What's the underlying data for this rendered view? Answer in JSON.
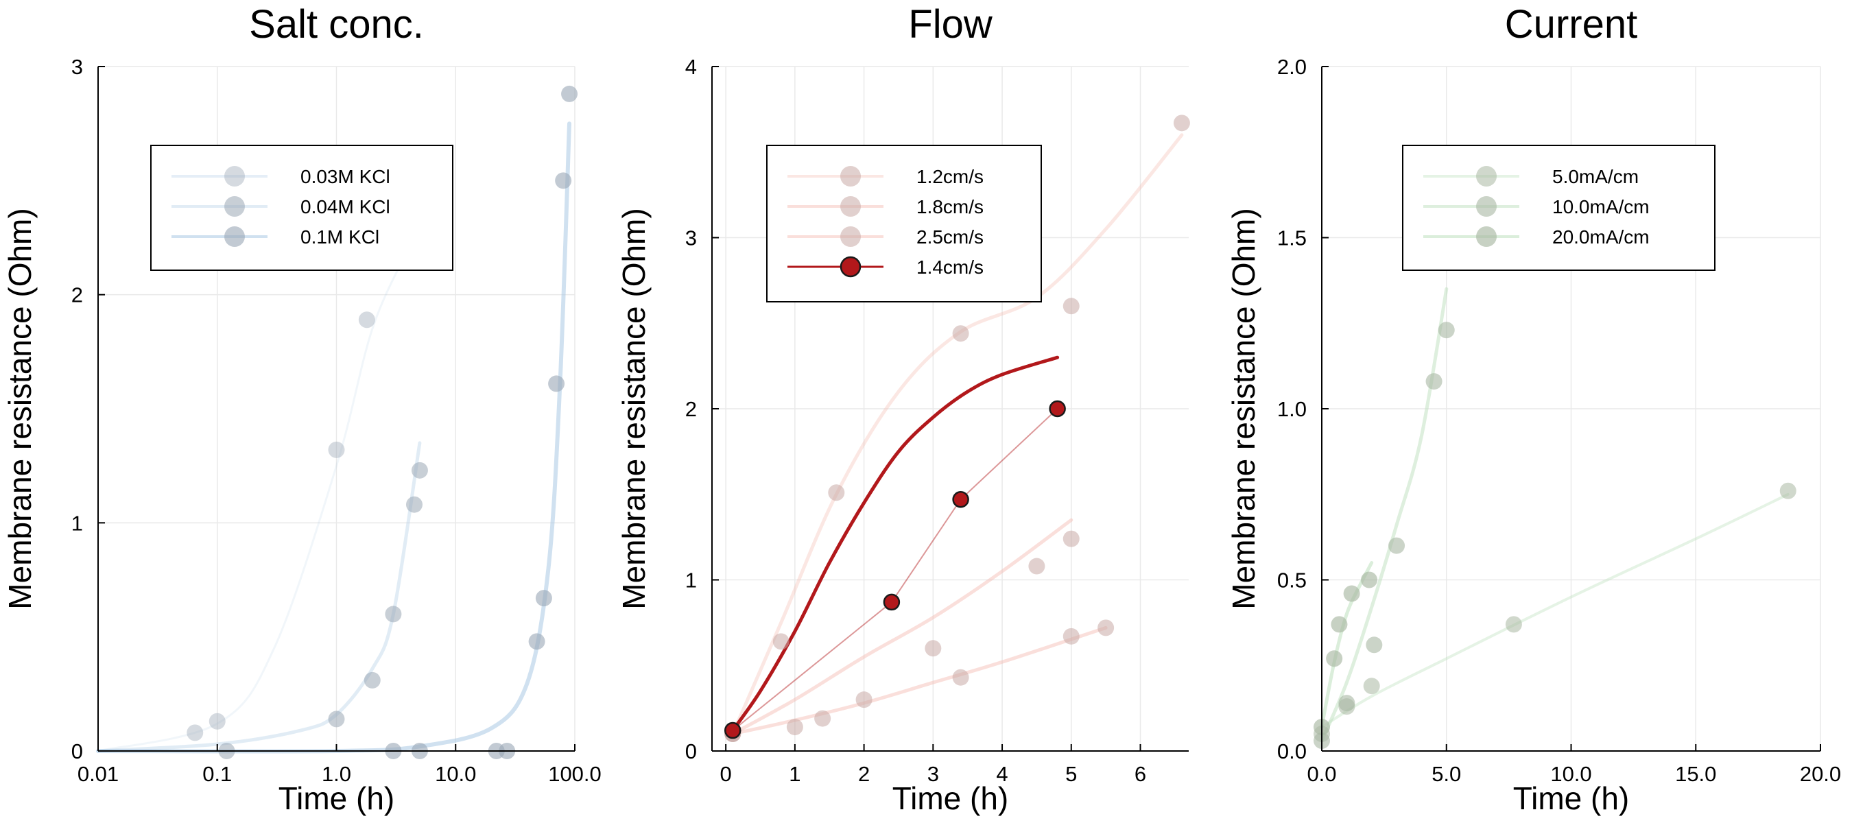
{
  "chart_data": [
    {
      "type": "scatter",
      "title": "Salt conc.",
      "xlabel": "Time (h)",
      "ylabel": "Membrane resistance (Ohm)",
      "xscale": "log",
      "xlim": [
        0.01,
        100
      ],
      "ylim": [
        0,
        3
      ],
      "xticks": [
        0.01,
        0.1,
        1,
        10,
        100
      ],
      "xtick_labels": [
        "0.01",
        "0.1",
        "1.0",
        "10.0",
        "100.0"
      ],
      "yticks": [
        0,
        1,
        2,
        3
      ],
      "ytick_labels": [
        "0",
        "1",
        "2",
        "3"
      ],
      "grid": true,
      "legend_position": "top-left",
      "colors": {
        "marker": "#9aa7b5",
        "line": "#a9c8e3"
      },
      "series": [
        {
          "name": "0.03M KCl",
          "points": [
            [
              0.065,
              0.08
            ],
            [
              0.1,
              0.13
            ],
            [
              1.0,
              1.32
            ],
            [
              1.8,
              1.89
            ]
          ],
          "fit": [
            [
              0.01,
              0.0
            ],
            [
              0.1,
              0.12
            ],
            [
              0.3,
              0.45
            ],
            [
              1.0,
              1.25
            ],
            [
              2.0,
              1.85
            ],
            [
              4.0,
              2.2
            ]
          ]
        },
        {
          "name": "0.04M KCl",
          "points": [
            [
              0.12,
              0.0
            ],
            [
              1.0,
              0.14
            ],
            [
              2.0,
              0.31
            ],
            [
              3.0,
              0.6
            ],
            [
              4.5,
              1.08
            ],
            [
              5.0,
              1.23
            ]
          ],
          "fit": [
            [
              0.01,
              0.0
            ],
            [
              0.1,
              0.03
            ],
            [
              0.5,
              0.09
            ],
            [
              1.0,
              0.16
            ],
            [
              2.0,
              0.36
            ],
            [
              3.0,
              0.6
            ],
            [
              5.0,
              1.35
            ]
          ]
        },
        {
          "name": "0.1M KCl",
          "points": [
            [
              3.0,
              0.0
            ],
            [
              5.0,
              0.0
            ],
            [
              22,
              0.0
            ],
            [
              27,
              0.0
            ],
            [
              48,
              0.48
            ],
            [
              55,
              0.67
            ],
            [
              70,
              1.61
            ],
            [
              80,
              2.5
            ],
            [
              90,
              2.88
            ]
          ],
          "fit": [
            [
              0.01,
              0.0
            ],
            [
              1.0,
              0.0
            ],
            [
              5.0,
              0.02
            ],
            [
              20,
              0.1
            ],
            [
              40,
              0.3
            ],
            [
              60,
              0.8
            ],
            [
              75,
              1.6
            ],
            [
              90,
              2.75
            ]
          ]
        }
      ]
    },
    {
      "type": "scatter",
      "title": "Flow",
      "xlabel": "Time (h)",
      "ylabel": "Membrane resistance (Ohm)",
      "xlim": [
        -0.2,
        6.7
      ],
      "ylim": [
        0,
        4
      ],
      "xticks": [
        0,
        1,
        2,
        3,
        4,
        5,
        6
      ],
      "xtick_labels": [
        "0",
        "1",
        "2",
        "3",
        "4",
        "5",
        "6"
      ],
      "yticks": [
        0,
        1,
        2,
        3,
        4
      ],
      "ytick_labels": [
        "0",
        "1",
        "2",
        "3",
        "4"
      ],
      "grid": true,
      "legend_position": "top-left",
      "colors": {
        "faint": "#f3b9b0",
        "highlight": "#b2181b"
      },
      "series": [
        {
          "name": "1.2cm/s",
          "points": [
            [
              0.1,
              0.1
            ],
            [
              0.8,
              0.64
            ],
            [
              1.6,
              1.51
            ],
            [
              3.4,
              2.44
            ],
            [
              5.0,
              2.6
            ],
            [
              6.6,
              3.67
            ]
          ],
          "fit": [
            [
              0.1,
              0.1
            ],
            [
              0.8,
              0.75
            ],
            [
              1.6,
              1.5
            ],
            [
              2.5,
              2.1
            ],
            [
              3.4,
              2.45
            ],
            [
              4.5,
              2.65
            ],
            [
              5.5,
              3.05
            ],
            [
              6.6,
              3.6
            ]
          ]
        },
        {
          "name": "1.8cm/s",
          "points": [
            [
              0.1,
              0.1
            ],
            [
              1.4,
              0.19
            ],
            [
              2.0,
              0.3
            ],
            [
              3.4,
              0.43
            ],
            [
              5.0,
              0.67
            ],
            [
              5.5,
              0.72
            ]
          ],
          "fit": [
            [
              0.1,
              0.1
            ],
            [
              1.0,
              0.18
            ],
            [
              2.0,
              0.28
            ],
            [
              3.0,
              0.4
            ],
            [
              4.0,
              0.52
            ],
            [
              5.5,
              0.72
            ]
          ]
        },
        {
          "name": "2.5cm/s",
          "points": [
            [
              0.1,
              0.1
            ],
            [
              1.0,
              0.14
            ],
            [
              3.0,
              0.6
            ],
            [
              4.5,
              1.08
            ],
            [
              5.0,
              1.24
            ]
          ],
          "fit": [
            [
              0.1,
              0.1
            ],
            [
              1.0,
              0.3
            ],
            [
              2.0,
              0.55
            ],
            [
              3.0,
              0.78
            ],
            [
              4.0,
              1.05
            ],
            [
              5.0,
              1.35
            ]
          ]
        },
        {
          "name": "1.4cm/s",
          "highlight": true,
          "points": [
            [
              0.1,
              0.12
            ],
            [
              2.4,
              0.87
            ],
            [
              3.4,
              1.47
            ],
            [
              4.8,
              2.0
            ]
          ],
          "fit": [
            [
              0.1,
              0.12
            ],
            [
              0.5,
              0.35
            ],
            [
              1.0,
              0.7
            ],
            [
              1.5,
              1.1
            ],
            [
              2.0,
              1.45
            ],
            [
              2.5,
              1.75
            ],
            [
              3.0,
              1.95
            ],
            [
              3.5,
              2.1
            ],
            [
              4.0,
              2.2
            ],
            [
              4.8,
              2.3
            ]
          ]
        }
      ]
    },
    {
      "type": "scatter",
      "title": "Current",
      "xlabel": "Time (h)",
      "ylabel": "Membrane resistance (Ohm)",
      "xlim": [
        0,
        20
      ],
      "ylim": [
        0,
        2
      ],
      "xticks": [
        0,
        5,
        10,
        15,
        20
      ],
      "xtick_labels": [
        "0.0",
        "5.0",
        "10.0",
        "15.0",
        "20.0"
      ],
      "yticks": [
        0,
        0.5,
        1.0,
        1.5,
        2.0
      ],
      "ytick_labels": [
        "0.0",
        "0.5",
        "1.0",
        "1.5",
        "2.0"
      ],
      "grid": true,
      "legend_position": "top-left",
      "colors": {
        "marker": "#a9b8a3",
        "line": "#bde0bd"
      },
      "series": [
        {
          "name": "5.0mA/cm",
          "points": [
            [
              0.0,
              0.05
            ],
            [
              1.0,
              0.13
            ],
            [
              2.0,
              0.19
            ],
            [
              7.7,
              0.37
            ],
            [
              18.7,
              0.76
            ]
          ],
          "fit": [
            [
              0.0,
              0.07
            ],
            [
              2.0,
              0.16
            ],
            [
              5.0,
              0.27
            ],
            [
              10.0,
              0.45
            ],
            [
              15.0,
              0.62
            ],
            [
              18.7,
              0.75
            ]
          ]
        },
        {
          "name": "10.0mA/cm",
          "points": [
            [
              0.0,
              0.03
            ],
            [
              1.0,
              0.14
            ],
            [
              2.1,
              0.31
            ],
            [
              3.0,
              0.6
            ],
            [
              4.5,
              1.08
            ],
            [
              5.0,
              1.23
            ]
          ],
          "fit": [
            [
              0.0,
              0.03
            ],
            [
              1.0,
              0.2
            ],
            [
              2.0,
              0.42
            ],
            [
              3.0,
              0.66
            ],
            [
              4.0,
              0.92
            ],
            [
              5.0,
              1.35
            ]
          ]
        },
        {
          "name": "20.0mA/cm",
          "points": [
            [
              0.0,
              0.07
            ],
            [
              0.5,
              0.27
            ],
            [
              0.7,
              0.37
            ],
            [
              1.2,
              0.46
            ],
            [
              1.9,
              0.5
            ]
          ],
          "fit": [
            [
              0.0,
              0.07
            ],
            [
              0.5,
              0.26
            ],
            [
              1.0,
              0.4
            ],
            [
              1.5,
              0.48
            ],
            [
              2.0,
              0.55
            ]
          ]
        }
      ]
    }
  ]
}
